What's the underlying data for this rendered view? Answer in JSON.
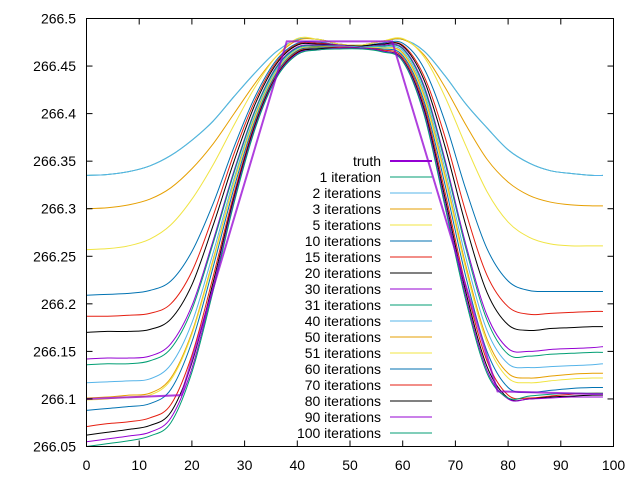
{
  "chart_data": {
    "type": "line",
    "title": "",
    "xlabel": "",
    "ylabel": "",
    "xlim": [
      0,
      100
    ],
    "ylim": [
      266.05,
      266.5
    ],
    "grid": false,
    "legend_position": "center",
    "x_ticks": [
      "0",
      "10",
      "20",
      "30",
      "40",
      "50",
      "60",
      "70",
      "80",
      "90",
      "100"
    ],
    "x_tick_values": [
      0,
      10,
      20,
      30,
      40,
      50,
      60,
      70,
      80,
      90,
      100
    ],
    "y_ticks": [
      "266.05",
      "266.1",
      "266.15",
      "266.2",
      "266.25",
      "266.3",
      "266.35",
      "266.4",
      "266.45",
      "266.5"
    ],
    "y_tick_values": [
      266.05,
      266.1,
      266.15,
      266.2,
      266.25,
      266.3,
      266.35,
      266.4,
      266.45,
      266.5
    ],
    "x": [
      0,
      4,
      8,
      12,
      16,
      20,
      24,
      28,
      32,
      36,
      40,
      44,
      48,
      52,
      56,
      60,
      64,
      68,
      72,
      76,
      80,
      84,
      88,
      92,
      96,
      98
    ],
    "truth": {
      "name": "truth",
      "color": "#9400d3",
      "x": [
        0,
        18,
        38,
        58,
        78,
        98
      ],
      "values": [
        266.1,
        266.104,
        266.476,
        266.476,
        266.108,
        266.105
      ]
    },
    "series": [
      {
        "name": "1 iteration",
        "color": "#009e73",
        "values": [
          266.335,
          266.336,
          266.339,
          266.345,
          266.356,
          266.372,
          266.392,
          266.418,
          266.443,
          266.465,
          266.478,
          266.478,
          266.473,
          266.472,
          266.476,
          266.478,
          266.466,
          266.44,
          266.41,
          266.385,
          266.362,
          266.348,
          266.34,
          266.337,
          266.335,
          266.335
        ]
      },
      {
        "name": "2 iterations",
        "color": "#56b4e9",
        "values": [
          266.335,
          266.336,
          266.339,
          266.345,
          266.356,
          266.372,
          266.392,
          266.418,
          266.443,
          266.465,
          266.478,
          266.478,
          266.473,
          266.472,
          266.476,
          266.478,
          266.466,
          266.44,
          266.41,
          266.385,
          266.362,
          266.348,
          266.34,
          266.337,
          266.335,
          266.335
        ]
      },
      {
        "name": "3 iterations",
        "color": "#e69f00",
        "values": [
          266.3,
          266.301,
          266.304,
          266.31,
          266.322,
          266.342,
          266.368,
          266.4,
          266.432,
          266.46,
          266.477,
          266.478,
          266.473,
          266.472,
          266.476,
          266.478,
          266.462,
          266.428,
          266.388,
          266.352,
          266.328,
          266.314,
          266.307,
          266.304,
          266.303,
          266.303
        ]
      },
      {
        "name": "5 iterations",
        "color": "#f0e442",
        "values": [
          266.257,
          266.258,
          266.261,
          266.268,
          266.283,
          266.31,
          266.346,
          266.388,
          266.428,
          266.46,
          266.479,
          266.478,
          266.473,
          266.472,
          266.476,
          266.479,
          266.46,
          266.418,
          266.366,
          266.318,
          266.286,
          266.27,
          266.263,
          266.261,
          266.261,
          266.261
        ]
      },
      {
        "name": "10 iterations",
        "color": "#0072b2",
        "values": [
          266.209,
          266.21,
          266.211,
          266.214,
          266.224,
          266.255,
          266.305,
          266.365,
          266.418,
          266.456,
          266.474,
          266.475,
          266.472,
          266.471,
          266.474,
          266.474,
          266.448,
          266.392,
          266.32,
          266.258,
          266.224,
          266.214,
          266.213,
          266.213,
          266.213,
          266.213
        ]
      },
      {
        "name": "15 iterations",
        "color": "#e51e10",
        "values": [
          266.187,
          266.187,
          266.188,
          266.19,
          266.2,
          266.234,
          266.292,
          266.358,
          266.414,
          266.454,
          266.473,
          266.474,
          266.472,
          266.471,
          266.473,
          266.472,
          266.44,
          266.376,
          266.296,
          266.23,
          266.197,
          266.189,
          266.19,
          266.191,
          266.192,
          266.192
        ]
      },
      {
        "name": "20 iterations",
        "color": "#000000",
        "values": [
          266.17,
          266.171,
          266.171,
          266.173,
          266.184,
          266.22,
          266.282,
          266.35,
          266.41,
          266.452,
          266.472,
          266.473,
          266.472,
          266.471,
          266.473,
          266.471,
          266.436,
          266.366,
          266.282,
          266.212,
          266.178,
          266.172,
          266.174,
          266.175,
          266.176,
          266.176
        ]
      },
      {
        "name": "30 iterations",
        "color": "#9400d3",
        "values": [
          266.142,
          266.143,
          266.143,
          266.145,
          266.158,
          266.198,
          266.266,
          266.34,
          266.404,
          266.449,
          266.47,
          266.472,
          266.472,
          266.47,
          266.472,
          266.469,
          266.43,
          266.352,
          266.262,
          266.188,
          266.153,
          266.15,
          266.152,
          266.153,
          266.154,
          266.155
        ]
      },
      {
        "name": "31 iterations",
        "color": "#009e73",
        "values": [
          266.136,
          266.137,
          266.137,
          266.14,
          266.153,
          266.194,
          266.263,
          266.338,
          266.403,
          266.448,
          266.469,
          266.471,
          266.471,
          266.47,
          266.471,
          266.468,
          266.428,
          266.349,
          266.258,
          266.183,
          266.147,
          266.145,
          266.147,
          266.148,
          266.149,
          266.149
        ]
      },
      {
        "name": "40 iterations",
        "color": "#56b4e9",
        "values": [
          266.117,
          266.118,
          266.119,
          266.121,
          266.136,
          266.18,
          266.253,
          266.332,
          266.399,
          266.446,
          266.468,
          266.47,
          266.471,
          266.47,
          266.47,
          266.466,
          266.424,
          266.342,
          266.248,
          266.172,
          266.137,
          266.133,
          266.134,
          266.135,
          266.136,
          266.137
        ]
      },
      {
        "name": "50 iterations",
        "color": "#e69f00",
        "values": [
          266.101,
          266.102,
          266.104,
          266.106,
          266.122,
          266.17,
          266.246,
          266.328,
          266.397,
          266.444,
          266.467,
          266.47,
          266.47,
          266.469,
          266.469,
          266.464,
          266.42,
          266.336,
          266.24,
          266.163,
          266.127,
          266.122,
          266.124,
          266.126,
          266.127,
          266.127
        ]
      },
      {
        "name": "51 iterations",
        "color": "#f0e442",
        "values": [
          266.099,
          266.1,
          266.102,
          266.104,
          266.12,
          266.168,
          266.244,
          266.327,
          266.396,
          266.444,
          266.467,
          266.469,
          266.47,
          266.469,
          266.469,
          266.463,
          266.418,
          266.333,
          266.236,
          266.159,
          266.122,
          266.117,
          266.119,
          266.121,
          266.122,
          266.122
        ]
      },
      {
        "name": "60 iterations",
        "color": "#0072b2",
        "values": [
          266.088,
          266.09,
          266.092,
          266.095,
          266.11,
          266.16,
          266.238,
          266.322,
          266.393,
          266.442,
          266.466,
          266.469,
          266.47,
          266.469,
          266.468,
          266.461,
          266.414,
          266.326,
          266.228,
          266.15,
          266.112,
          266.107,
          266.109,
          266.111,
          266.112,
          266.112
        ]
      },
      {
        "name": "70 iterations",
        "color": "#e51e10",
        "values": [
          266.071,
          266.074,
          266.076,
          266.08,
          266.094,
          266.146,
          266.228,
          266.316,
          266.39,
          266.44,
          266.465,
          266.468,
          266.47,
          266.469,
          266.467,
          266.459,
          266.41,
          266.318,
          266.218,
          266.14,
          266.104,
          266.101,
          266.103,
          266.105,
          266.106,
          266.106
        ]
      },
      {
        "name": "80 iterations",
        "color": "#000000",
        "values": [
          266.062,
          266.065,
          266.068,
          266.072,
          266.086,
          266.138,
          266.222,
          266.312,
          266.388,
          266.439,
          266.464,
          266.468,
          266.469,
          266.469,
          266.466,
          266.457,
          266.406,
          266.312,
          266.212,
          266.134,
          266.101,
          266.1,
          266.102,
          266.103,
          266.104,
          266.104
        ]
      },
      {
        "name": "90 iterations",
        "color": "#9400d3",
        "values": [
          266.055,
          266.058,
          266.061,
          266.065,
          266.08,
          266.132,
          266.217,
          266.309,
          266.386,
          266.438,
          266.463,
          266.467,
          266.469,
          266.469,
          266.466,
          266.456,
          266.403,
          266.307,
          266.207,
          266.13,
          266.1,
          266.1,
          266.101,
          266.102,
          266.102,
          266.102
        ]
      },
      {
        "name": "100 iterations",
        "color": "#009e73",
        "values": [
          266.05,
          266.053,
          266.056,
          266.061,
          266.075,
          266.128,
          266.213,
          266.306,
          266.384,
          266.437,
          266.462,
          266.467,
          266.468,
          266.468,
          266.465,
          266.455,
          266.4,
          266.303,
          266.203,
          266.127,
          266.101,
          266.103,
          266.105,
          266.106,
          266.106,
          266.106
        ]
      }
    ]
  }
}
